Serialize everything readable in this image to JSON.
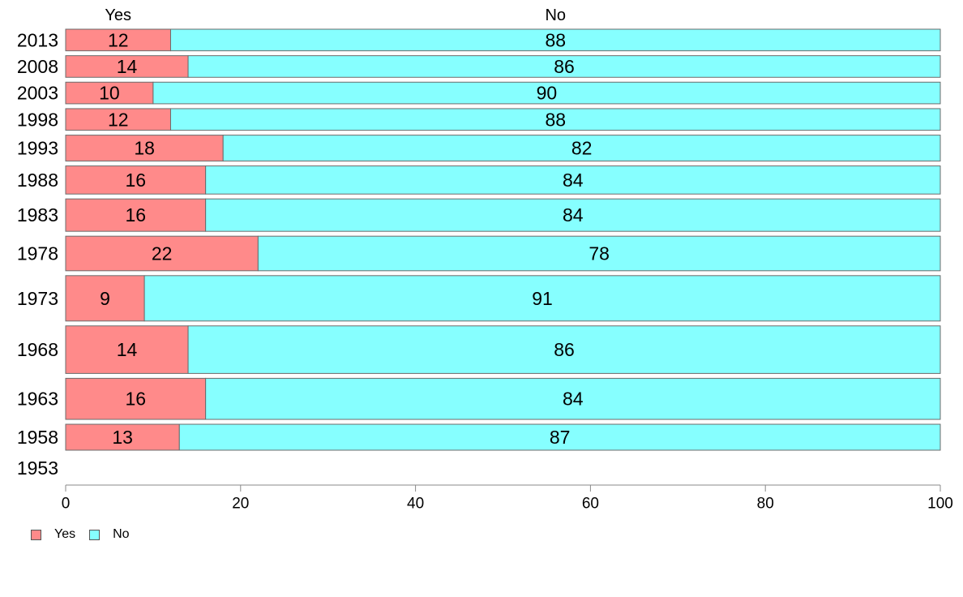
{
  "chart_data": {
    "type": "bar",
    "orientation": "horizontal",
    "stacked": true,
    "categories": [
      "2013",
      "2008",
      "2003",
      "1998",
      "1993",
      "1988",
      "1983",
      "1978",
      "1973",
      "1968",
      "1963",
      "1958",
      "1953"
    ],
    "series": [
      {
        "name": "Yes",
        "color": "#ff8a8a",
        "values": [
          12,
          14,
          10,
          12,
          18,
          16,
          16,
          22,
          9,
          14,
          16,
          13,
          null
        ]
      },
      {
        "name": "No",
        "color": "#86ffff",
        "values": [
          88,
          86,
          90,
          88,
          82,
          84,
          84,
          78,
          91,
          86,
          84,
          87,
          null
        ]
      }
    ],
    "bar_weights": [
      1,
      1,
      1,
      1,
      1.2,
      1.3,
      1.5,
      1.6,
      2.1,
      2.2,
      1.9,
      1.2,
      0
    ],
    "xlim": [
      0,
      100
    ],
    "xticks": [
      "0",
      "20",
      "40",
      "60",
      "80",
      "100"
    ],
    "column_headers": [
      "Yes",
      "No"
    ],
    "legend": [
      "Yes",
      "No"
    ],
    "legend_position": "bottom-left",
    "grid": false
  }
}
